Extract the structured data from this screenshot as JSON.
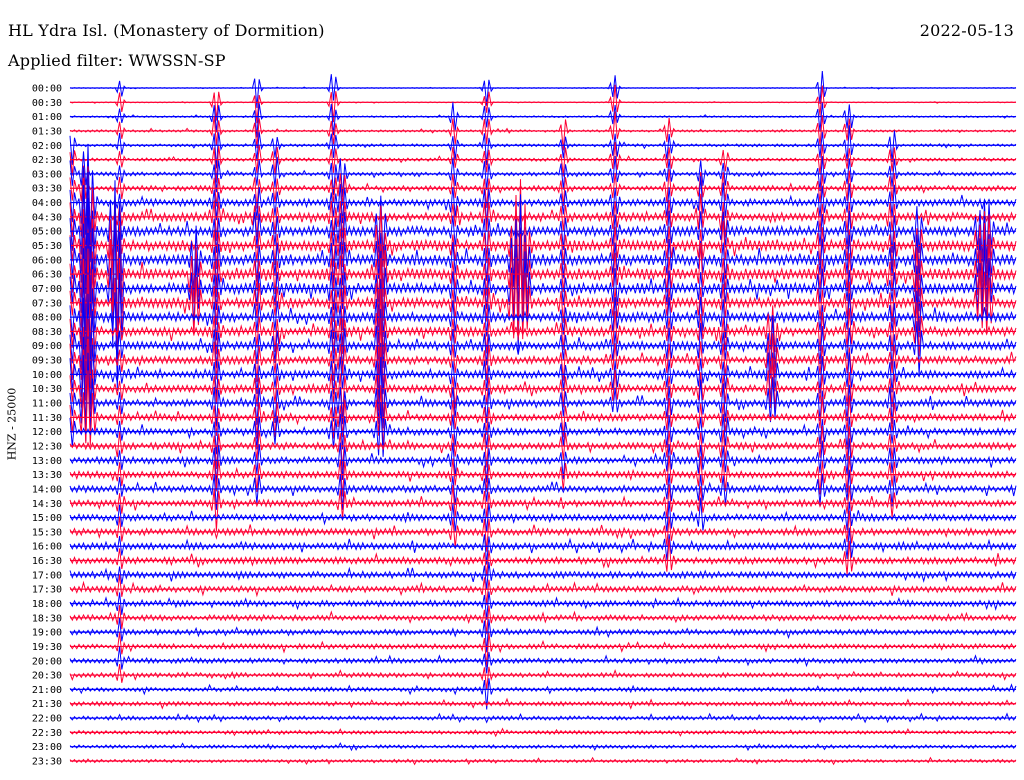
{
  "header": {
    "title": "HL Ydra Isl. (Monastery of Dormition)",
    "date": "2022-05-13",
    "filter": "Applied filter: WWSSN-SP"
  },
  "colors": {
    "even_rows": "#0000ff",
    "odd_rows": "#ff0033",
    "text": "#000000"
  },
  "chart_data": {
    "type": "line",
    "title": "HL Ydra Isl. (Monastery of Dormition)",
    "ylabel": "HNZ - 25000",
    "row_labels": [
      "00:00",
      "00:30",
      "01:00",
      "01:30",
      "02:00",
      "02:30",
      "03:00",
      "03:30",
      "04:00",
      "04:30",
      "05:00",
      "05:30",
      "06:00",
      "06:30",
      "07:00",
      "07:30",
      "08:00",
      "08:30",
      "09:00",
      "09:30",
      "10:00",
      "10:30",
      "11:00",
      "11:30",
      "12:00",
      "12:30",
      "13:00",
      "13:30",
      "14:00",
      "14:30",
      "15:00",
      "15:30",
      "16:00",
      "16:30",
      "17:00",
      "17:30",
      "18:00",
      "18:30",
      "19:00",
      "19:30",
      "20:00",
      "20:30",
      "21:00",
      "21:30",
      "22:00",
      "22:30",
      "23:00",
      "23:30"
    ],
    "row_colors": [
      "blue",
      "red"
    ],
    "grid": false,
    "legend": "none",
    "noise_rows": [
      0.3,
      0.3,
      0.6,
      0.8,
      1.0,
      1.1,
      1.3,
      1.8,
      2.5,
      3.0,
      3.4,
      3.8,
      4.0,
      4.0,
      3.8,
      3.6,
      3.4,
      3.2,
      3.0,
      2.8,
      2.7,
      2.6,
      2.5,
      2.5,
      2.4,
      2.4,
      2.4,
      2.4,
      2.4,
      2.4,
      2.4,
      2.4,
      2.4,
      2.4,
      2.3,
      2.2,
      2.1,
      2.0,
      1.9,
      1.8,
      1.7,
      1.6,
      1.5,
      1.5,
      1.4,
      1.3,
      1.2,
      1.1
    ],
    "spike_events": [
      {
        "time_min": 2,
        "amp": 1.5,
        "width": 5,
        "rows": [
          4,
          24
        ]
      },
      {
        "time_min": 15,
        "amp": 1.5,
        "width": 6,
        "rows": [
          6,
          22
        ]
      },
      {
        "time_min": 20,
        "amp": 4,
        "width": 10,
        "rows": [
          8,
          23
        ]
      },
      {
        "time_min": 48,
        "amp": 4,
        "width": 8,
        "rows": [
          10,
          14
        ]
      },
      {
        "time_min": 52,
        "amp": 5,
        "width": 6,
        "rows": [
          12,
          16
        ]
      },
      {
        "time_min": 55,
        "amp": 1.0,
        "width": 5,
        "rows": [
          0,
          41
        ]
      },
      {
        "time_min": 137,
        "amp": 3,
        "width": 8,
        "rows": [
          12,
          15
        ]
      },
      {
        "time_min": 160,
        "amp": 1.6,
        "width": 6,
        "rows": [
          1,
          29
        ]
      },
      {
        "time_min": 205,
        "amp": 1.6,
        "width": 5,
        "rows": [
          0,
          28
        ]
      },
      {
        "time_min": 225,
        "amp": 1.5,
        "width": 5,
        "rows": [
          4,
          24
        ]
      },
      {
        "time_min": 288,
        "amp": 1.5,
        "width": 6,
        "rows": [
          0,
          24
        ]
      },
      {
        "time_min": 298,
        "amp": 1.8,
        "width": 6,
        "rows": [
          6,
          29
        ]
      },
      {
        "time_min": 340,
        "amp": 3,
        "width": 8,
        "rows": [
          10,
          24
        ]
      },
      {
        "time_min": 420,
        "amp": 1.4,
        "width": 5,
        "rows": [
          2,
          31
        ]
      },
      {
        "time_min": 456,
        "amp": 1.4,
        "width": 6,
        "rows": [
          0,
          42
        ]
      },
      {
        "time_min": 492,
        "amp": 5,
        "width": 14,
        "rows": [
          11,
          15
        ]
      },
      {
        "time_min": 540,
        "amp": 1.4,
        "width": 5,
        "rows": [
          3,
          27
        ]
      },
      {
        "time_min": 596,
        "amp": 1.4,
        "width": 6,
        "rows": [
          0,
          22
        ]
      },
      {
        "time_min": 655,
        "amp": 1.4,
        "width": 6,
        "rows": [
          3,
          33
        ]
      },
      {
        "time_min": 690,
        "amp": 1.5,
        "width": 5,
        "rows": [
          6,
          30
        ]
      },
      {
        "time_min": 716,
        "amp": 1.5,
        "width": 6,
        "rows": [
          5,
          28
        ]
      },
      {
        "time_min": 768,
        "amp": 2.5,
        "width": 8,
        "rows": [
          17,
          22
        ]
      },
      {
        "time_min": 822,
        "amp": 1.5,
        "width": 6,
        "rows": [
          0,
          28
        ]
      },
      {
        "time_min": 852,
        "amp": 1.6,
        "width": 6,
        "rows": [
          2,
          33
        ]
      },
      {
        "time_min": 900,
        "amp": 1.5,
        "width": 6,
        "rows": [
          4,
          29
        ]
      },
      {
        "time_min": 928,
        "amp": 2.5,
        "width": 6,
        "rows": [
          10,
          18
        ]
      },
      {
        "time_min": 1000,
        "amp": 3.5,
        "width": 12,
        "rows": [
          10,
          15
        ]
      }
    ]
  }
}
